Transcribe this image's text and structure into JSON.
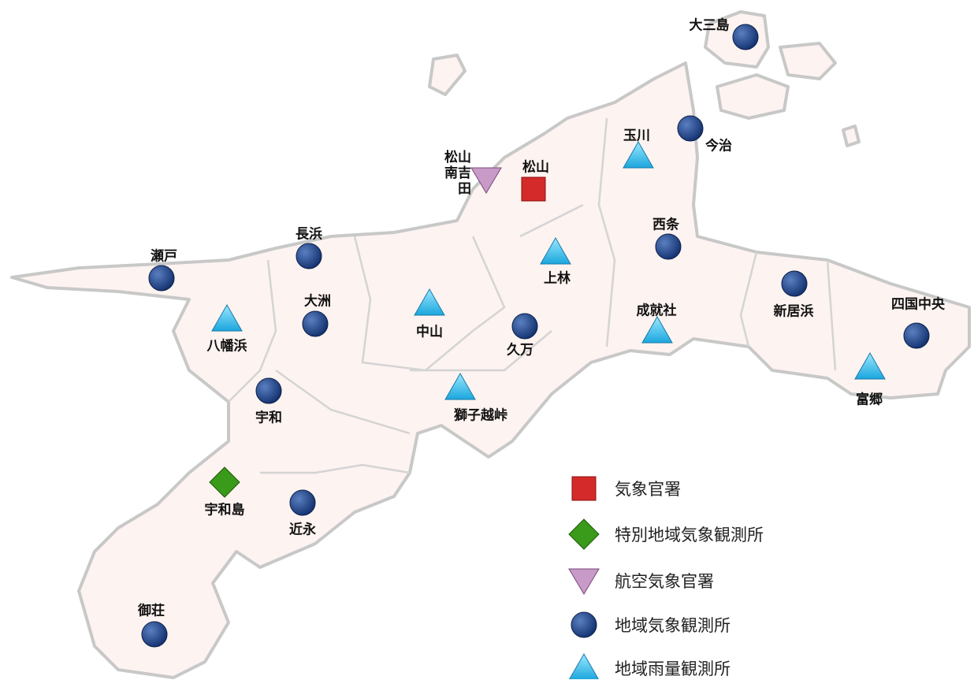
{
  "legend": [
    {
      "label": "気象官署",
      "stations": [
        "松山"
      ]
    },
    {
      "label": "特別地域気象観測所",
      "stations": [
        "宇和島"
      ]
    },
    {
      "label": "航空気象官署",
      "stations": [
        "松山南吉田"
      ]
    },
    {
      "label": "地域気象観測所",
      "stations": [
        "大三島",
        "今治",
        "西条",
        "新居浜",
        "四国中央",
        "久万",
        "長浜",
        "瀬戸",
        "大洲",
        "宇和",
        "近永",
        "御荘"
      ]
    },
    {
      "label": "地域雨量観測所",
      "stations": [
        "玉川",
        "上林",
        "成就社",
        "中山",
        "八幡浜",
        "獅子越峠",
        "富郷"
      ]
    }
  ]
}
